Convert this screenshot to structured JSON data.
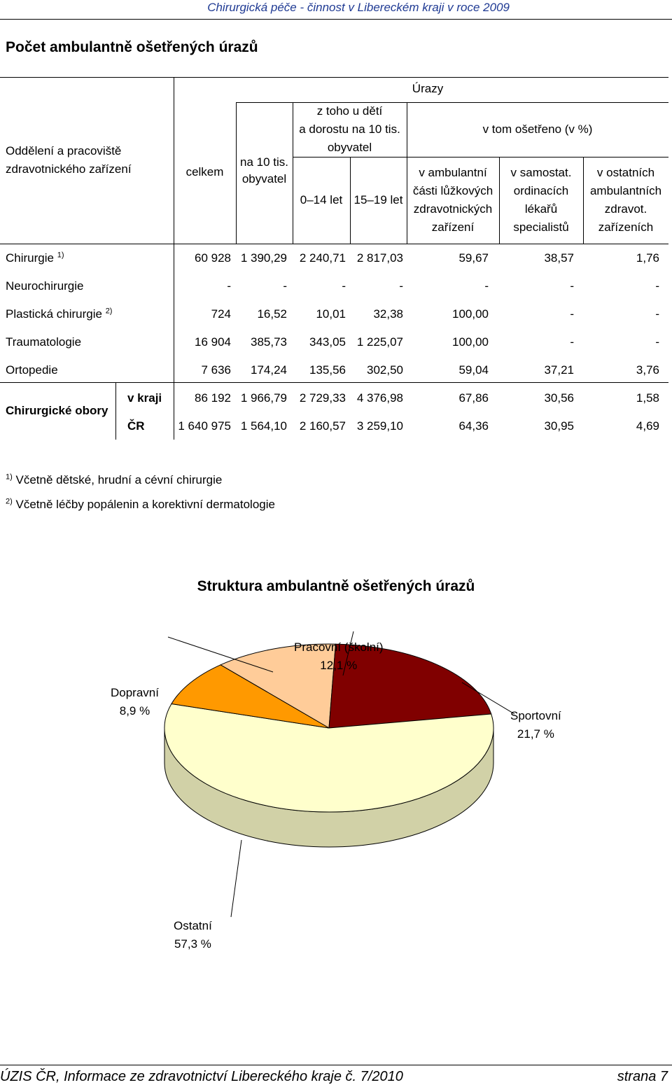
{
  "header": {
    "title": "Chirurgická péče - činnost v Libereckém kraji v roce 2009"
  },
  "page_title": "Počet ambulantně ošetřených úrazů",
  "table": {
    "col_headers": {
      "department": [
        "Oddělení a pracoviště",
        "zdravotnického zařízení"
      ],
      "group": "Úrazy",
      "celkem": "celkem",
      "per10k": [
        "na 10 tis.",
        "obyvatel"
      ],
      "children_group": [
        "z toho u dětí",
        "a dorostu na 10 tis.",
        "obyvatel"
      ],
      "age_0_14": "0–14 let",
      "age_15_19": "15–19 let",
      "treated_group": "v tom ošetřeno (v %)",
      "treated_hospital": [
        "v ambulantní",
        "části lůžkových",
        "zdravotnických",
        "zařízení"
      ],
      "treated_private": [
        "v samostat.",
        "ordinacích",
        "lékařů",
        "specialistů"
      ],
      "treated_other": [
        "v ostatních",
        "ambulantních",
        "zdravot.",
        "zařízeních"
      ]
    },
    "rows": [
      {
        "name": "Chirurgie",
        "note": "1)",
        "values": [
          "60 928",
          "1 390,29",
          "2 240,71",
          "2 817,03",
          "59,67",
          "38,57",
          "1,76"
        ]
      },
      {
        "name": "Neurochirurgie",
        "note": "",
        "values": [
          "-",
          "-",
          "-",
          "-",
          "-",
          "-",
          "-"
        ]
      },
      {
        "name": "Plastická chirurgie",
        "note": "2)",
        "values": [
          "724",
          "16,52",
          "10,01",
          "32,38",
          "100,00",
          "-",
          "-"
        ]
      },
      {
        "name": "Traumatologie",
        "note": "",
        "values": [
          "16 904",
          "385,73",
          "343,05",
          "1 225,07",
          "100,00",
          "-",
          "-"
        ]
      },
      {
        "name": "Ortopedie",
        "note": "",
        "values": [
          "7 636",
          "174,24",
          "135,56",
          "302,50",
          "59,04",
          "37,21",
          "3,76"
        ]
      }
    ],
    "summary_group": "Chirurgické obory",
    "summary_rows": [
      {
        "name": "v kraji",
        "values": [
          "86 192",
          "1 966,79",
          "2 729,33",
          "4 376,98",
          "67,86",
          "30,56",
          "1,58"
        ]
      },
      {
        "name": "ČR",
        "values": [
          "1 640 975",
          "1 564,10",
          "2 160,57",
          "3 259,10",
          "64,36",
          "30,95",
          "4,69"
        ]
      }
    ]
  },
  "notes": [
    {
      "mark": "1)",
      "text": "Včetně dětské, hrudní a cévní  chirurgie"
    },
    {
      "mark": "2)",
      "text": "Včetně léčby popálenin a korektivní dermatologie"
    }
  ],
  "chart_data": {
    "type": "pie",
    "title": "Struktura ambulantně ošetřených úrazů",
    "slices": [
      {
        "label": "Pracovní (školní)",
        "value": 12.1,
        "value_label": "12,1 %",
        "color": "#FFCC99"
      },
      {
        "label": "Sportovní",
        "value": 21.7,
        "value_label": "21,7 %",
        "color": "#800000"
      },
      {
        "label": "Ostatní",
        "value": 57.3,
        "value_label": "57,3 %",
        "color": "#FFFFCC"
      },
      {
        "label": "Dopravní",
        "value": 8.9,
        "value_label": "8,9 %",
        "color": "#FF9900"
      }
    ]
  },
  "footer": {
    "left": "ÚZIS ČR, Informace ze zdravotnictví Libereckého kraje č. 7/2010",
    "right": "strana 7"
  }
}
